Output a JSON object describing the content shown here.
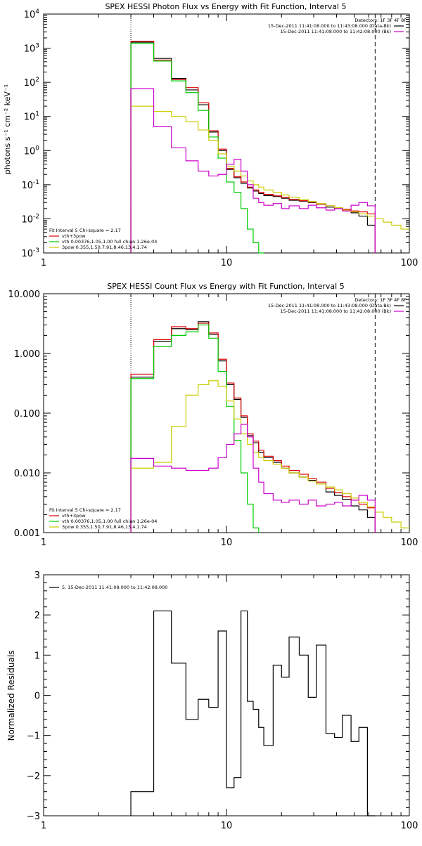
{
  "chart_data": [
    {
      "type": "line",
      "title": "SPEX HESSI Photon Flux vs Energy with Fit Function, Interval 5",
      "ylabel": "photons s⁻¹ cm⁻² keV⁻¹",
      "xlabel": "",
      "xscale": "log",
      "yscale": "log",
      "xlim": [
        1,
        100
      ],
      "ylim": [
        0.001,
        10000
      ],
      "x_ticks": [
        {
          "value": 1,
          "label": "1"
        },
        {
          "value": 10,
          "label": "10"
        },
        {
          "value": 100,
          "label": "100"
        }
      ],
      "y_ticks": [
        {
          "value": 0.001,
          "base": "10",
          "exp": "-3"
        },
        {
          "value": 0.01,
          "base": "10",
          "exp": "-2"
        },
        {
          "value": 0.1,
          "base": "10",
          "exp": "-1"
        },
        {
          "value": 1,
          "base": "10",
          "exp": "0"
        },
        {
          "value": 10,
          "base": "10",
          "exp": "1"
        },
        {
          "value": 100,
          "base": "10",
          "exp": "2"
        },
        {
          "value": 1000,
          "base": "10",
          "exp": "3"
        },
        {
          "value": 10000,
          "base": "10",
          "exp": "4"
        }
      ],
      "vlines": [
        {
          "x": 3.0,
          "style": "dotted"
        },
        {
          "x": 65,
          "style": "dashed"
        }
      ],
      "legend_top_right": [
        {
          "text": "Detectors: 1F 3F 4F 8F",
          "color": "#000000",
          "marker": false
        },
        {
          "text": "15-Dec-2011 11:41:08.000 to 11:43:08.000 (Data-Bk)",
          "color": "#000000",
          "marker": true
        },
        {
          "text": "15-Dec-2011 11:41:08.000 to 11:42:08.000 (Bk)",
          "color": "#cc00cc",
          "marker": true
        }
      ],
      "legend_bottom_left": [
        {
          "text": "Fit Interval 5   Chi-square = 2.17",
          "color": "#000000",
          "marker": false
        },
        {
          "text": "vth+3pow",
          "color": "#dd0000",
          "marker": true
        },
        {
          "text": "vth 0.00376,1.05,1.00  full chian 1.26e-04",
          "color": "#00cc00",
          "marker": true
        },
        {
          "text": "3pow 0.355,1.50,7.91,8.46,13.4,1.74",
          "color": "#cccc00",
          "marker": true
        }
      ],
      "series": [
        {
          "color": "#000000",
          "step_edges": [
            3.0,
            4.0,
            5.0,
            6.0,
            7.0,
            8.0,
            9.0,
            10.0,
            11.0,
            12.0,
            13.0,
            14.0,
            15.0,
            16.0,
            18.0,
            20.0,
            22.0,
            25.0,
            28.0,
            31.0,
            35.0,
            39.0,
            43.0,
            48.0,
            53.0,
            59.0,
            65.0
          ],
          "values": [
            1500,
            500,
            130,
            60,
            22,
            3.5,
            1.0,
            0.28,
            0.16,
            0.11,
            0.08,
            0.065,
            0.055,
            0.048,
            0.045,
            0.04,
            0.035,
            0.033,
            0.03,
            0.027,
            0.022,
            0.02,
            0.018,
            0.015,
            0.012,
            0.0065
          ]
        },
        {
          "color": "#dd0000",
          "step_edges": [
            3.0,
            4.0,
            5.0,
            6.0,
            7.0,
            8.0,
            9.0,
            10.0,
            11.0,
            12.0,
            13.0,
            14.0,
            15.0,
            16.0,
            18.0,
            20.0,
            22.0,
            25.0,
            28.0,
            31.0,
            35.0,
            39.0,
            43.0,
            48.0,
            53.0,
            59.0,
            65.0
          ],
          "values": [
            1600,
            450,
            120,
            70,
            25,
            3.8,
            1.1,
            0.3,
            0.17,
            0.12,
            0.085,
            0.07,
            0.06,
            0.052,
            0.047,
            0.042,
            0.037,
            0.034,
            0.031,
            0.027,
            0.024,
            0.021,
            0.019,
            0.017,
            0.016,
            0.014
          ]
        },
        {
          "color": "#00cc00",
          "step_edges": [
            3.0,
            4.0,
            5.0,
            6.0,
            7.0,
            8.0,
            9.0,
            10.0,
            11.0,
            12.0,
            13.0,
            14.0,
            15.0,
            16.0
          ],
          "values": [
            1400,
            420,
            110,
            50,
            15,
            2.5,
            0.6,
            0.12,
            0.06,
            0.02,
            0.005,
            0.002,
            0.001
          ]
        },
        {
          "color": "#cccc00",
          "step_edges": [
            3.0,
            4.0,
            5.0,
            6.0,
            7.0,
            8.0,
            9.0,
            10.0,
            11.0,
            12.0,
            13.0,
            14.0,
            15.0,
            16.0,
            18.0,
            20.0,
            22.0,
            25.0,
            28.0,
            31.0,
            35.0,
            39.0,
            43.0,
            48.0,
            53.0,
            59.0,
            65.0,
            72.0,
            80.0,
            90.0,
            100.0
          ],
          "values": [
            20,
            14,
            10,
            7,
            4.0,
            2.0,
            0.8,
            0.35,
            0.25,
            0.18,
            0.13,
            0.1,
            0.085,
            0.07,
            0.06,
            0.05,
            0.043,
            0.037,
            0.032,
            0.028,
            0.024,
            0.021,
            0.018,
            0.016,
            0.014,
            0.012,
            0.01,
            0.008,
            0.0065,
            0.005
          ]
        },
        {
          "color": "#cc00cc",
          "step_edges": [
            3.0,
            4.0,
            5.0,
            6.0,
            7.0,
            8.0,
            9.0,
            10.0,
            11.0,
            12.0,
            13.0,
            14.0,
            15.0,
            16.0,
            18.0,
            20.0,
            22.0,
            25.0,
            28.0,
            31.0,
            35.0,
            39.0,
            43.0,
            48.0,
            53.0,
            59.0,
            65.0
          ],
          "values": [
            65,
            5,
            1.2,
            0.5,
            0.25,
            0.18,
            0.2,
            0.4,
            0.55,
            0.25,
            0.1,
            0.04,
            0.03,
            0.025,
            0.028,
            0.02,
            0.024,
            0.02,
            0.025,
            0.021,
            0.018,
            0.02,
            0.017,
            0.025,
            0.03,
            0.024
          ]
        }
      ]
    },
    {
      "type": "line",
      "title": "SPEX HESSI Count Flux vs Energy with Fit Function, Interval 5",
      "xlabel": "",
      "ylabel": "",
      "xscale": "log",
      "yscale": "log",
      "xlim": [
        1,
        100
      ],
      "ylim": [
        0.001,
        10
      ],
      "x_ticks": [
        {
          "value": 1,
          "label": "1"
        },
        {
          "value": 10,
          "label": "10"
        },
        {
          "value": 100,
          "label": "100"
        }
      ],
      "y_ticks": [
        {
          "value": 0.001,
          "label": "0.001"
        },
        {
          "value": 0.01,
          "label": "0.010"
        },
        {
          "value": 0.1,
          "label": "0.100"
        },
        {
          "value": 1,
          "label": "1.000"
        },
        {
          "value": 10,
          "label": "10.000"
        }
      ],
      "vlines": [
        {
          "x": 3.0,
          "style": "dotted"
        },
        {
          "x": 65,
          "style": "dashed"
        }
      ],
      "legend_top_right": [
        {
          "text": "Detectors: 1F 3F 4F 8F",
          "color": "#000000",
          "marker": false
        },
        {
          "text": "15-Dec-2011 11:41:08.000 to 11:43:08.000 (Data-Bk)",
          "color": "#000000",
          "marker": true
        },
        {
          "text": "15-Dec-2011 11:41:08.000 to 11:42:08.000 (Bk)",
          "color": "#cc00cc",
          "marker": true
        }
      ],
      "legend_bottom_left": [
        {
          "text": "Fit Interval 5   Chi-square = 2.17",
          "color": "#000000",
          "marker": false
        },
        {
          "text": "vth+3pow",
          "color": "#dd0000",
          "marker": true
        },
        {
          "text": "vth 0.00376,1.05,1.00  full chian 1.26e-04",
          "color": "#00cc00",
          "marker": true
        },
        {
          "text": "3pow 0.355,1.50,7.91,8.46,13.4,1.74",
          "color": "#cccc00",
          "marker": true
        }
      ],
      "series": [
        {
          "color": "#000000",
          "step_edges": [
            3.0,
            4.0,
            5.0,
            6.0,
            7.0,
            8.0,
            9.0,
            10.0,
            11.0,
            12.0,
            13.0,
            14.0,
            15.0,
            16.0,
            18.0,
            20.0,
            22.0,
            25.0,
            28.0,
            31.0,
            35.0,
            39.0,
            43.0,
            48.0,
            53.0,
            59.0,
            65.0
          ],
          "values": [
            0.4,
            1.6,
            2.6,
            2.5,
            3.4,
            2.1,
            0.75,
            0.3,
            0.17,
            0.085,
            0.042,
            0.032,
            0.022,
            0.018,
            0.015,
            0.012,
            0.01,
            0.0085,
            0.0075,
            0.0065,
            0.0048,
            0.0042,
            0.0036,
            0.0028,
            0.0024,
            0.0018
          ]
        },
        {
          "color": "#dd0000",
          "step_edges": [
            3.0,
            4.0,
            5.0,
            6.0,
            7.0,
            8.0,
            9.0,
            10.0,
            11.0,
            12.0,
            13.0,
            14.0,
            15.0,
            16.0,
            18.0,
            20.0,
            22.0,
            25.0,
            28.0,
            31.0,
            35.0,
            39.0,
            43.0,
            48.0,
            53.0,
            59.0,
            65.0
          ],
          "values": [
            0.45,
            1.7,
            2.8,
            2.6,
            3.2,
            2.2,
            0.8,
            0.32,
            0.18,
            0.09,
            0.045,
            0.034,
            0.024,
            0.019,
            0.016,
            0.013,
            0.011,
            0.0095,
            0.008,
            0.007,
            0.0055,
            0.0047,
            0.004,
            0.0035,
            0.003,
            0.0026
          ]
        },
        {
          "color": "#00cc00",
          "step_edges": [
            3.0,
            4.0,
            5.0,
            6.0,
            7.0,
            8.0,
            9.0,
            10.0,
            11.0,
            12.0,
            13.0,
            14.0,
            15.0
          ],
          "values": [
            0.38,
            1.3,
            2.0,
            2.3,
            3.0,
            1.8,
            0.5,
            0.13,
            0.035,
            0.01,
            0.003,
            0.0012
          ]
        },
        {
          "color": "#cccc00",
          "step_edges": [
            3.0,
            4.0,
            5.0,
            6.0,
            7.0,
            8.0,
            9.0,
            10.0,
            11.0,
            12.0,
            13.0,
            14.0,
            15.0,
            16.0,
            18.0,
            20.0,
            22.0,
            25.0,
            28.0,
            31.0,
            35.0,
            39.0,
            43.0,
            48.0,
            53.0,
            59.0,
            65.0,
            72.0,
            80.0,
            90.0,
            100.0
          ],
          "values": [
            0.012,
            0.015,
            0.06,
            0.2,
            0.3,
            0.35,
            0.28,
            0.16,
            0.08,
            0.045,
            0.03,
            0.022,
            0.018,
            0.016,
            0.014,
            0.012,
            0.01,
            0.0085,
            0.0073,
            0.0065,
            0.0058,
            0.0052,
            0.0045,
            0.0038,
            0.0032,
            0.0027,
            0.0022,
            0.0018,
            0.0015,
            0.0012
          ]
        },
        {
          "color": "#cc00cc",
          "step_edges": [
            3.0,
            4.0,
            5.0,
            6.0,
            7.0,
            8.0,
            9.0,
            10.0,
            11.0,
            12.0,
            13.0,
            14.0,
            15.0,
            16.0,
            18.0,
            20.0,
            22.0,
            25.0,
            28.0,
            31.0,
            35.0,
            39.0,
            43.0,
            48.0,
            53.0,
            59.0,
            65.0
          ],
          "values": [
            0.0175,
            0.013,
            0.012,
            0.011,
            0.011,
            0.012,
            0.018,
            0.03,
            0.045,
            0.065,
            0.04,
            0.012,
            0.007,
            0.0045,
            0.0035,
            0.0032,
            0.0035,
            0.003,
            0.0035,
            0.0028,
            0.003,
            0.0032,
            0.0028,
            0.0035,
            0.0042,
            0.0035
          ]
        }
      ]
    },
    {
      "type": "line",
      "title": "",
      "xlabel": "",
      "ylabel": "Normalized Residuals",
      "xscale": "log",
      "yscale": "linear",
      "xlim": [
        1,
        100
      ],
      "ylim": [
        -3,
        3
      ],
      "x_ticks": [
        {
          "value": 1,
          "label": "1"
        },
        {
          "value": 10,
          "label": "10"
        },
        {
          "value": 100,
          "label": "100"
        }
      ],
      "y_ticks": [
        {
          "value": -3,
          "label": "−3"
        },
        {
          "value": -2,
          "label": "−2"
        },
        {
          "value": -1,
          "label": "−1"
        },
        {
          "value": 0,
          "label": "0"
        },
        {
          "value": 1,
          "label": "1"
        },
        {
          "value": 2,
          "label": "2"
        },
        {
          "value": 3,
          "label": "3"
        }
      ],
      "vlines": [],
      "legend_top_left": [
        {
          "text": "5. 15-Dec-2011 11:41:08.000 to 11:42:08.000",
          "color": "#000000",
          "marker": true
        }
      ],
      "series": [
        {
          "color": "#000000",
          "step_edges": [
            3.0,
            4.0,
            5.0,
            6.0,
            7.0,
            8.0,
            9.0,
            10.0,
            11.0,
            12.0,
            13.0,
            14.0,
            15.0,
            16.0,
            18.0,
            20.0,
            22.0,
            25.0,
            28.0,
            31.0,
            35.0,
            39.0,
            43.0,
            48.0,
            53.0,
            59.0,
            65.0
          ],
          "values": [
            -2.4,
            2.1,
            0.8,
            -0.6,
            -0.1,
            -0.3,
            1.6,
            -2.3,
            -2.05,
            2.1,
            -0.15,
            -0.35,
            -0.8,
            -1.25,
            0.75,
            0.45,
            1.45,
            1.0,
            -0.05,
            1.25,
            -0.95,
            -1.05,
            -0.5,
            -1.15,
            -0.8,
            -3.0
          ]
        }
      ]
    }
  ]
}
